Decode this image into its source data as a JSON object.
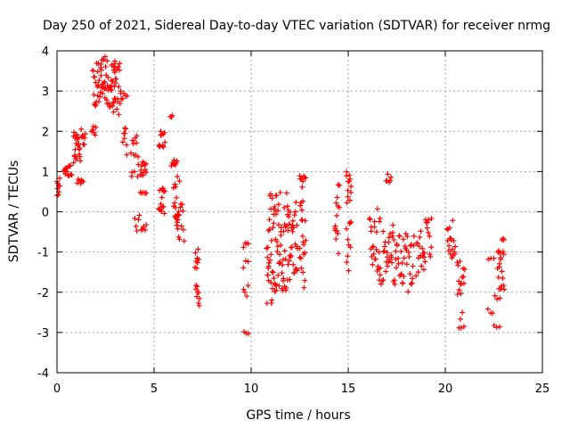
{
  "chart_data": {
    "type": "scatter",
    "title": "Day 250 of 2021, Sidereal Day-to-day VTEC variation (SDTVAR) for receiver nrmg",
    "xlabel": "GPS time / hours",
    "ylabel": "SDTVAR / TECUs",
    "xlim": [
      0,
      25
    ],
    "ylim": [
      -4,
      4
    ],
    "xticks": [
      0,
      5,
      10,
      15,
      20,
      25
    ],
    "yticks": [
      -4,
      -3,
      -2,
      -1,
      0,
      1,
      2,
      3,
      4
    ],
    "xtick_labels": [
      "0",
      "5",
      "10",
      "15",
      "20",
      "25"
    ],
    "ytick_labels": [
      "-4",
      "-3",
      "-2",
      "-1",
      "0",
      "1",
      "2",
      "3",
      "4"
    ],
    "grid": true,
    "marker": "+",
    "color": "#ff0000",
    "series": [
      {
        "name": "nrmg",
        "segments": [
          {
            "x0": 0.0,
            "x1": 0.15,
            "y0": 0.35,
            "y1": 0.85,
            "n": 10
          },
          {
            "x0": 0.35,
            "x1": 0.75,
            "y0": 0.8,
            "y1": 1.15,
            "n": 14
          },
          {
            "x0": 0.85,
            "x1": 1.2,
            "y0": 1.2,
            "y1": 2.0,
            "n": 22
          },
          {
            "x0": 1.05,
            "x1": 1.35,
            "y0": 0.7,
            "y1": 0.85,
            "n": 7
          },
          {
            "x0": 1.25,
            "x1": 1.45,
            "y0": 1.6,
            "y1": 2.1,
            "n": 8
          },
          {
            "x0": 1.8,
            "x1": 2.0,
            "y0": 1.9,
            "y1": 2.15,
            "n": 6
          },
          {
            "x0": 1.85,
            "x1": 2.3,
            "y0": 2.6,
            "y1": 3.7,
            "n": 24
          },
          {
            "x0": 2.3,
            "x1": 3.0,
            "y0": 2.6,
            "y1": 3.9,
            "n": 40
          },
          {
            "x0": 2.9,
            "x1": 3.3,
            "y0": 2.4,
            "y1": 3.8,
            "n": 20
          },
          {
            "x0": 3.3,
            "x1": 3.6,
            "y0": 2.8,
            "y1": 2.95,
            "n": 5
          },
          {
            "x0": 3.4,
            "x1": 3.6,
            "y0": 1.4,
            "y1": 2.1,
            "n": 8
          },
          {
            "x0": 3.8,
            "x1": 4.2,
            "y0": 0.8,
            "y1": 1.9,
            "n": 14
          },
          {
            "x0": 4.0,
            "x1": 4.25,
            "y0": -0.7,
            "y1": 0.1,
            "n": 5
          },
          {
            "x0": 4.3,
            "x1": 4.6,
            "y0": 0.9,
            "y1": 1.5,
            "n": 12
          },
          {
            "x0": 4.3,
            "x1": 4.6,
            "y0": 0.45,
            "y1": 0.6,
            "n": 5
          },
          {
            "x0": 4.35,
            "x1": 4.6,
            "y0": -0.5,
            "y1": -0.3,
            "n": 5
          },
          {
            "x0": 5.25,
            "x1": 5.55,
            "y0": 1.6,
            "y1": 2.0,
            "n": 12
          },
          {
            "x0": 5.25,
            "x1": 5.55,
            "y0": -0.1,
            "y1": 0.7,
            "n": 14
          },
          {
            "x0": 5.85,
            "x1": 5.95,
            "y0": 2.35,
            "y1": 2.45,
            "n": 3
          },
          {
            "x0": 5.9,
            "x1": 6.1,
            "y0": 1.1,
            "y1": 1.25,
            "n": 5
          },
          {
            "x0": 6.0,
            "x1": 6.3,
            "y0": -0.2,
            "y1": 1.3,
            "n": 18
          },
          {
            "x0": 6.1,
            "x1": 6.55,
            "y0": -0.8,
            "y1": 0.2,
            "n": 14
          },
          {
            "x0": 7.1,
            "x1": 7.3,
            "y0": -1.5,
            "y1": -0.75,
            "n": 8
          },
          {
            "x0": 7.15,
            "x1": 7.35,
            "y0": -2.35,
            "y1": -1.8,
            "n": 9
          },
          {
            "x0": 9.6,
            "x1": 9.85,
            "y0": -0.9,
            "y1": -0.75,
            "n": 4
          },
          {
            "x0": 9.6,
            "x1": 9.85,
            "y0": -1.4,
            "y1": -1.2,
            "n": 3
          },
          {
            "x0": 9.6,
            "x1": 9.85,
            "y0": -2.15,
            "y1": -1.75,
            "n": 4
          },
          {
            "x0": 9.65,
            "x1": 9.85,
            "y0": -3.05,
            "y1": -2.9,
            "n": 3
          },
          {
            "x0": 10.8,
            "x1": 11.3,
            "y0": -2.35,
            "y1": 0.45,
            "n": 40
          },
          {
            "x0": 11.3,
            "x1": 11.9,
            "y0": -2.0,
            "y1": 0.55,
            "n": 40
          },
          {
            "x0": 11.9,
            "x1": 12.4,
            "y0": -1.8,
            "y1": 0.3,
            "n": 30
          },
          {
            "x0": 12.5,
            "x1": 12.8,
            "y0": -1.9,
            "y1": 0.3,
            "n": 20
          },
          {
            "x0": 12.5,
            "x1": 12.8,
            "y0": 0.6,
            "y1": 1.05,
            "n": 8
          },
          {
            "x0": 14.3,
            "x1": 14.55,
            "y0": -1.1,
            "y1": 0.95,
            "n": 14
          },
          {
            "x0": 14.9,
            "x1": 15.15,
            "y0": 0.2,
            "y1": 1.0,
            "n": 12
          },
          {
            "x0": 14.9,
            "x1": 15.15,
            "y0": -1.5,
            "y1": -0.05,
            "n": 10
          },
          {
            "x0": 16.1,
            "x1": 16.65,
            "y0": -1.5,
            "y1": 0.1,
            "n": 24
          },
          {
            "x0": 16.6,
            "x1": 16.8,
            "y0": -1.8,
            "y1": -1.5,
            "n": 5
          },
          {
            "x0": 16.8,
            "x1": 17.3,
            "y0": -1.6,
            "y1": -0.4,
            "n": 20
          },
          {
            "x0": 16.95,
            "x1": 17.2,
            "y0": 0.7,
            "y1": 0.95,
            "n": 6
          },
          {
            "x0": 17.3,
            "x1": 17.8,
            "y0": -1.9,
            "y1": 0.0,
            "n": 20
          },
          {
            "x0": 17.8,
            "x1": 18.4,
            "y0": -2.05,
            "y1": -0.4,
            "n": 22
          },
          {
            "x0": 18.5,
            "x1": 18.9,
            "y0": -1.6,
            "y1": -0.3,
            "n": 14
          },
          {
            "x0": 18.9,
            "x1": 19.3,
            "y0": -1.3,
            "y1": -0.1,
            "n": 14
          },
          {
            "x0": 20.1,
            "x1": 20.5,
            "y0": -1.2,
            "y1": -0.2,
            "n": 18
          },
          {
            "x0": 20.6,
            "x1": 21.0,
            "y0": -2.1,
            "y1": -1.2,
            "n": 14
          },
          {
            "x0": 20.7,
            "x1": 20.95,
            "y0": -2.9,
            "y1": -2.5,
            "n": 5
          },
          {
            "x0": 22.2,
            "x1": 22.5,
            "y0": -1.25,
            "y1": -1.15,
            "n": 3
          },
          {
            "x0": 22.2,
            "x1": 22.45,
            "y0": -2.65,
            "y1": -2.35,
            "n": 3
          },
          {
            "x0": 22.5,
            "x1": 22.8,
            "y0": -2.9,
            "y1": -2.8,
            "n": 3
          },
          {
            "x0": 22.55,
            "x1": 22.8,
            "y0": -2.2,
            "y1": -2.0,
            "n": 3
          },
          {
            "x0": 22.7,
            "x1": 23.05,
            "y0": -1.95,
            "y1": -0.6,
            "n": 22
          }
        ]
      }
    ]
  }
}
